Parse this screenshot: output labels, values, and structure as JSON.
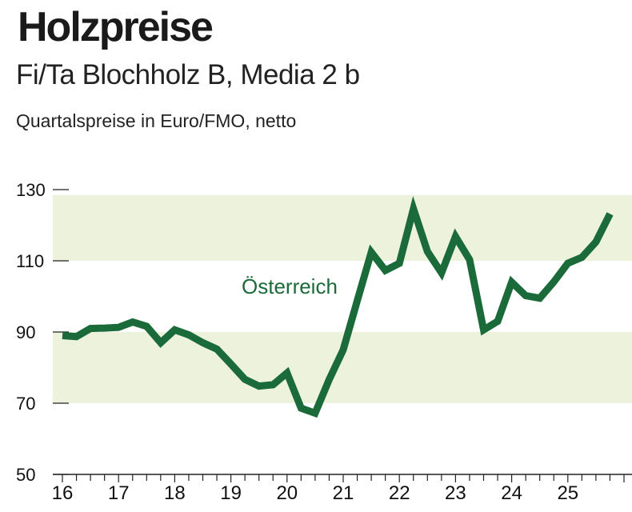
{
  "chart_data": {
    "type": "line",
    "title": "Holzpreise",
    "subtitle": "Fi/Ta Blochholz B, Media 2 b",
    "caption": "Quartalspreise in Euro/FMO, netto",
    "xlabel": "",
    "ylabel": "Euro/FMO",
    "ylim": [
      50,
      130
    ],
    "yticks": [
      50,
      70,
      90,
      110,
      130
    ],
    "xlim": [
      16,
      25.9
    ],
    "xticks": [
      16,
      17,
      18,
      19,
      20,
      21,
      22,
      23,
      24,
      25
    ],
    "xtick_labels": [
      "16",
      "17",
      "18",
      "19",
      "20",
      "21",
      "22",
      "23",
      "24",
      "25"
    ],
    "shaded_bands": [
      [
        70,
        90
      ],
      [
        110,
        128.5
      ]
    ],
    "band_color": "#edf2dd",
    "series": [
      {
        "name": "Österreich",
        "color": "#1b6b3a",
        "x": [
          16.0,
          16.25,
          16.5,
          16.75,
          17.0,
          17.25,
          17.5,
          17.75,
          18.0,
          18.25,
          18.5,
          18.75,
          19.0,
          19.25,
          19.5,
          19.75,
          20.0,
          20.25,
          20.5,
          20.75,
          21.0,
          21.25,
          21.5,
          21.75,
          22.0,
          22.25,
          22.5,
          22.75,
          23.0,
          23.25,
          23.5,
          23.75,
          24.0,
          24.25,
          24.5,
          24.75,
          25.0,
          25.25,
          25.5,
          25.75
        ],
        "values": [
          89,
          88.7,
          91,
          91.1,
          91.3,
          92.8,
          91.6,
          87,
          90.6,
          89.2,
          87,
          85.2,
          81,
          76.7,
          74.8,
          75.2,
          78.5,
          68.6,
          67.2,
          76.6,
          85,
          98.8,
          112.4,
          107.3,
          109.3,
          124.6,
          112.6,
          106.6,
          116.8,
          110.3,
          90.6,
          93,
          104,
          100.2,
          99.5,
          104.1,
          109.3,
          111,
          115.3,
          123.2
        ]
      }
    ]
  }
}
